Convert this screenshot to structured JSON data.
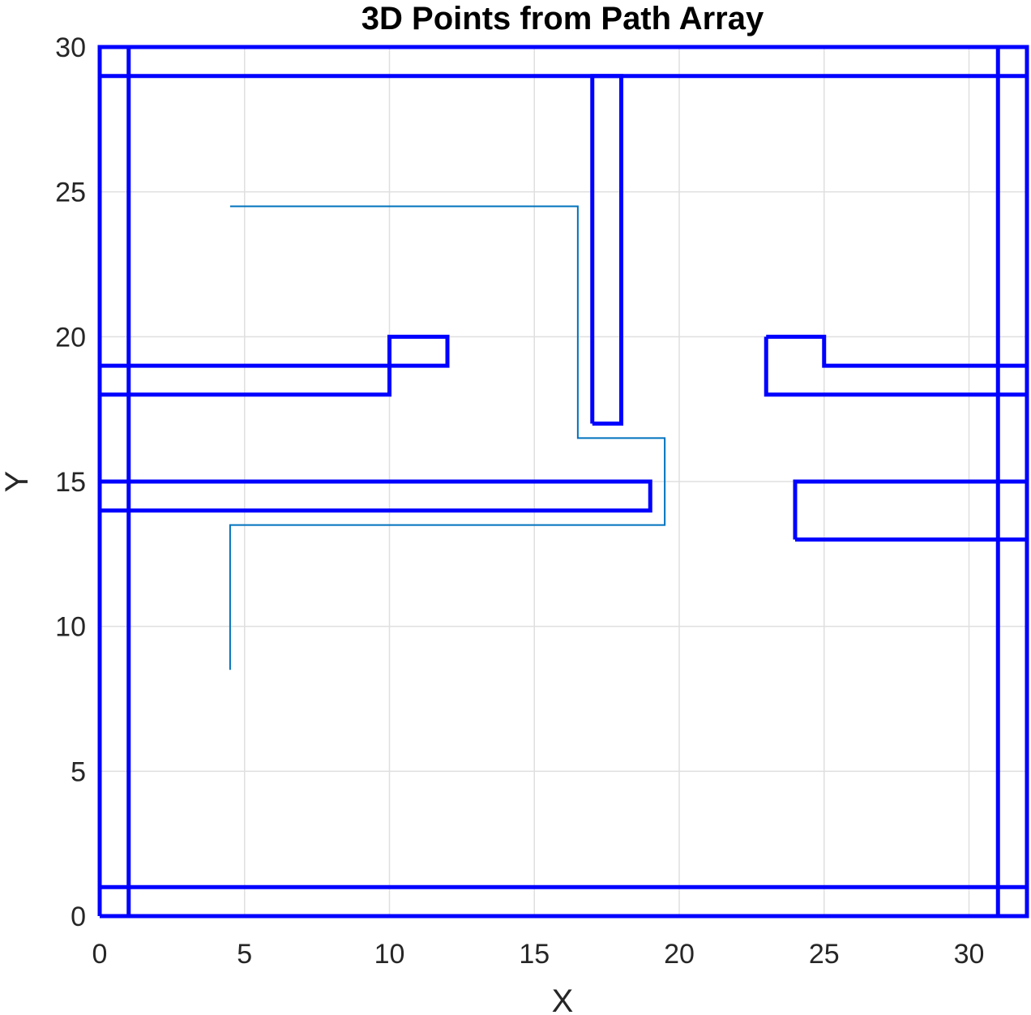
{
  "chart_data": {
    "type": "line",
    "title": "3D Points from Path Array",
    "xlabel": "X",
    "ylabel": "Y",
    "xlim": [
      0,
      32
    ],
    "ylim": [
      0,
      30
    ],
    "xticks": [
      0,
      5,
      10,
      15,
      20,
      25,
      30
    ],
    "yticks": [
      0,
      5,
      10,
      15,
      20,
      25,
      30
    ],
    "grid": true,
    "obstacle_color": "#0000ff",
    "path_color": "#0072bd",
    "obstacles": [
      {
        "x": [
          0,
          32,
          32,
          0,
          0
        ],
        "y": [
          29,
          29,
          30,
          30,
          29
        ]
      },
      {
        "x": [
          0,
          32,
          32,
          0,
          0
        ],
        "y": [
          0,
          0,
          1,
          1,
          0
        ]
      },
      {
        "x": [
          0,
          1,
          1,
          0,
          0
        ],
        "y": [
          0,
          0,
          30,
          30,
          0
        ]
      },
      {
        "x": [
          31,
          32,
          32,
          31,
          31
        ],
        "y": [
          0,
          0,
          30,
          30,
          0
        ]
      },
      {
        "x": [
          17,
          18,
          18,
          17,
          17
        ],
        "y": [
          17,
          17,
          29,
          29,
          17
        ]
      },
      {
        "x": [
          0,
          10,
          10,
          12,
          12,
          0,
          0
        ],
        "y": [
          18,
          18,
          20,
          20,
          19,
          19,
          18
        ]
      },
      {
        "x": [
          23,
          25,
          25,
          32,
          32,
          23,
          23
        ],
        "y": [
          20,
          20,
          19,
          19,
          18,
          18,
          20
        ]
      },
      {
        "x": [
          0,
          19,
          19,
          0,
          0
        ],
        "y": [
          14,
          14,
          15,
          15,
          14
        ]
      },
      {
        "x": [
          24,
          32,
          32,
          24,
          24
        ],
        "y": [
          13,
          13,
          15,
          15,
          13
        ]
      }
    ],
    "path": {
      "x": [
        4.5,
        16.5,
        16.5,
        19.5,
        19.5,
        4.5,
        4.5
      ],
      "y": [
        24.5,
        24.5,
        16.5,
        16.5,
        13.5,
        13.5,
        8.5
      ]
    }
  }
}
